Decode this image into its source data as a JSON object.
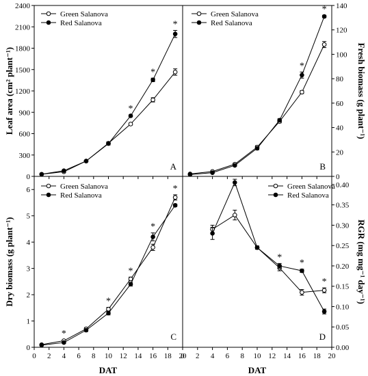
{
  "legend": {
    "green": "Green Salanova",
    "red": "Red Salanova"
  },
  "x_axis": {
    "title": "DAT",
    "ticks": [
      0,
      2,
      4,
      6,
      8,
      10,
      12,
      14,
      16,
      18,
      20
    ]
  },
  "chart_data": [
    {
      "type": "line",
      "panel": "A",
      "ylabel": "Leaf area (cm² plant⁻¹)",
      "ylim": [
        0,
        2400
      ],
      "yticks": [
        0,
        300,
        600,
        900,
        1200,
        1500,
        1800,
        2100,
        2400
      ],
      "xlim": [
        0,
        20
      ],
      "x": [
        1,
        4,
        7,
        10,
        13,
        16,
        19
      ],
      "series": [
        {
          "name": "Green Salanova",
          "marker": "open-circle",
          "values": [
            30,
            65,
            215,
            465,
            735,
            1075,
            1465
          ],
          "errors": [
            5,
            8,
            10,
            20,
            15,
            30,
            45
          ]
        },
        {
          "name": "Red Salanova",
          "marker": "filled-circle",
          "values": [
            30,
            80,
            215,
            460,
            850,
            1355,
            2000
          ],
          "errors": [
            5,
            8,
            10,
            20,
            15,
            25,
            50
          ]
        }
      ],
      "significant_x": [
        13,
        16,
        19
      ],
      "grid": false
    },
    {
      "type": "line",
      "panel": "B",
      "ylabel": "Fresh biomass (g plant⁻¹)",
      "ylim": [
        0,
        140
      ],
      "yticks": [
        0,
        20,
        40,
        60,
        80,
        100,
        120,
        140
      ],
      "xlim": [
        0,
        20
      ],
      "x": [
        1,
        4,
        7,
        10,
        13,
        16,
        19
      ],
      "series": [
        {
          "name": "Green Salanova",
          "marker": "open-circle",
          "values": [
            2,
            4,
            10,
            24,
            45,
            69,
            108
          ],
          "errors": [
            0.3,
            0.5,
            0.8,
            1.2,
            1.2,
            1.2,
            2.5
          ]
        },
        {
          "name": "Red Salanova",
          "marker": "filled-circle",
          "values": [
            1.5,
            3,
            9,
            23,
            46,
            83,
            131
          ],
          "errors": [
            0.3,
            0.5,
            0.8,
            1.2,
            1.2,
            2.5,
            1.0
          ]
        }
      ],
      "significant_x": [
        16,
        19
      ],
      "grid": false
    },
    {
      "type": "line",
      "panel": "C",
      "ylabel": "Dry biomass (g plant⁻¹)",
      "ylim": [
        0,
        6.5
      ],
      "yticks": [
        0,
        1,
        2,
        3,
        4,
        5,
        6
      ],
      "xlim": [
        0,
        20
      ],
      "x": [
        1,
        4,
        7,
        10,
        13,
        16,
        19
      ],
      "series": [
        {
          "name": "Green Salanova",
          "marker": "open-circle",
          "values": [
            0.1,
            0.25,
            0.7,
            1.45,
            2.6,
            3.8,
            5.7
          ],
          "errors": [
            0.02,
            0.03,
            0.05,
            0.07,
            0.07,
            0.12,
            0.1
          ]
        },
        {
          "name": "Red Salanova",
          "marker": "filled-circle",
          "values": [
            0.08,
            0.18,
            0.65,
            1.3,
            2.4,
            4.2,
            5.4
          ],
          "errors": [
            0.02,
            0.03,
            0.05,
            0.07,
            0.07,
            0.15,
            0.05
          ]
        }
      ],
      "significant_x": [
        4,
        10,
        13,
        16,
        19
      ],
      "grid": false
    },
    {
      "type": "line",
      "panel": "D",
      "ylabel": "RGR (mg mg⁻¹ day⁻¹)",
      "ylim": [
        0,
        0.42
      ],
      "yticks": [
        0.0,
        0.05,
        0.1,
        0.15,
        0.2,
        0.25,
        0.3,
        0.35,
        0.4
      ],
      "xlim": [
        0,
        20
      ],
      "x": [
        4,
        7,
        10,
        13,
        16,
        19
      ],
      "series": [
        {
          "name": "Green Salanova",
          "marker": "open-circle",
          "values": [
            0.29,
            0.325,
            0.245,
            0.195,
            0.135,
            0.14
          ],
          "errors": [
            0.01,
            0.012,
            0.004,
            0.007,
            0.007,
            0.006
          ]
        },
        {
          "name": "Red Salanova",
          "marker": "filled-circle",
          "values": [
            0.28,
            0.405,
            0.245,
            0.2,
            0.188,
            0.088
          ],
          "errors": [
            0.015,
            0.008,
            0.004,
            0.006,
            0.004,
            0.006
          ]
        }
      ],
      "significant_x": [
        13,
        16,
        19
      ],
      "grid": false
    }
  ],
  "significance_mark": "*"
}
